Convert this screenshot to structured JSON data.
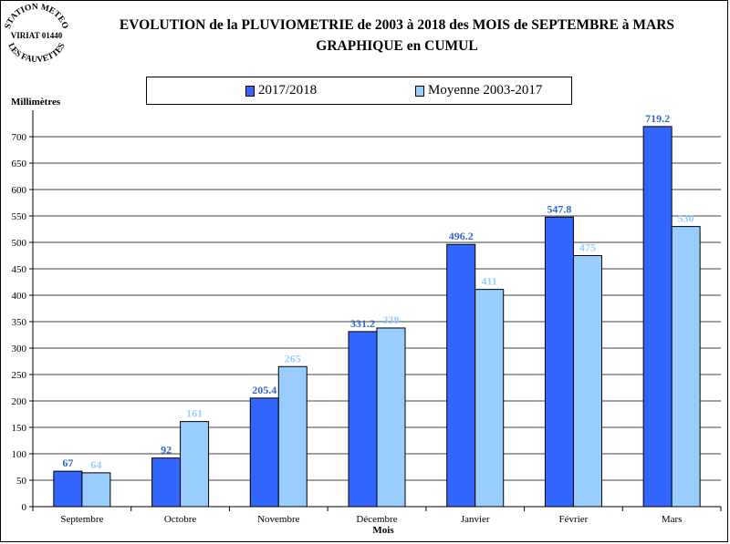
{
  "logo": {
    "line1": "STATION METEO",
    "line2": "VIRIAT 01440",
    "line3": "LES FAUVETTES"
  },
  "title": {
    "line1": "EVOLUTION de la PLUVIOMETRIE de 2003 à 2018 des MOIS de SEPTEMBRE à MARS",
    "line2": "GRAPHIQUE en CUMUL"
  },
  "legend": {
    "series1": "2017/2018",
    "series2": "Moyenne 2003-2017"
  },
  "colors": {
    "series1": "#3366ff",
    "series2": "#99ccff",
    "label1": "#3366cc",
    "label2": "#99ccff"
  },
  "chart_data": {
    "type": "bar",
    "ylabel": "Millimètres",
    "xlabel": "Mois",
    "ylim": [
      0,
      750
    ],
    "yticks": [
      0,
      50,
      100,
      150,
      200,
      250,
      300,
      350,
      400,
      450,
      500,
      550,
      600,
      650,
      700
    ],
    "grid": true,
    "legend_position": "top",
    "categories": [
      "Septembre",
      "Octobre",
      "Novembre",
      "Décembre",
      "Janvier",
      "Février",
      "Mars"
    ],
    "series": [
      {
        "name": "2017/2018",
        "values": [
          67,
          92,
          205.4,
          331.2,
          496.2,
          547.8,
          719.2
        ],
        "labels": [
          "67",
          "92",
          "205.4",
          "331.2",
          "496.2",
          "547.8",
          "719.2"
        ]
      },
      {
        "name": "Moyenne 2003-2017",
        "values": [
          64,
          161,
          265,
          338,
          411,
          475,
          530
        ],
        "labels": [
          "64",
          "161",
          "265",
          "338",
          "411",
          "475",
          "530"
        ]
      }
    ]
  }
}
